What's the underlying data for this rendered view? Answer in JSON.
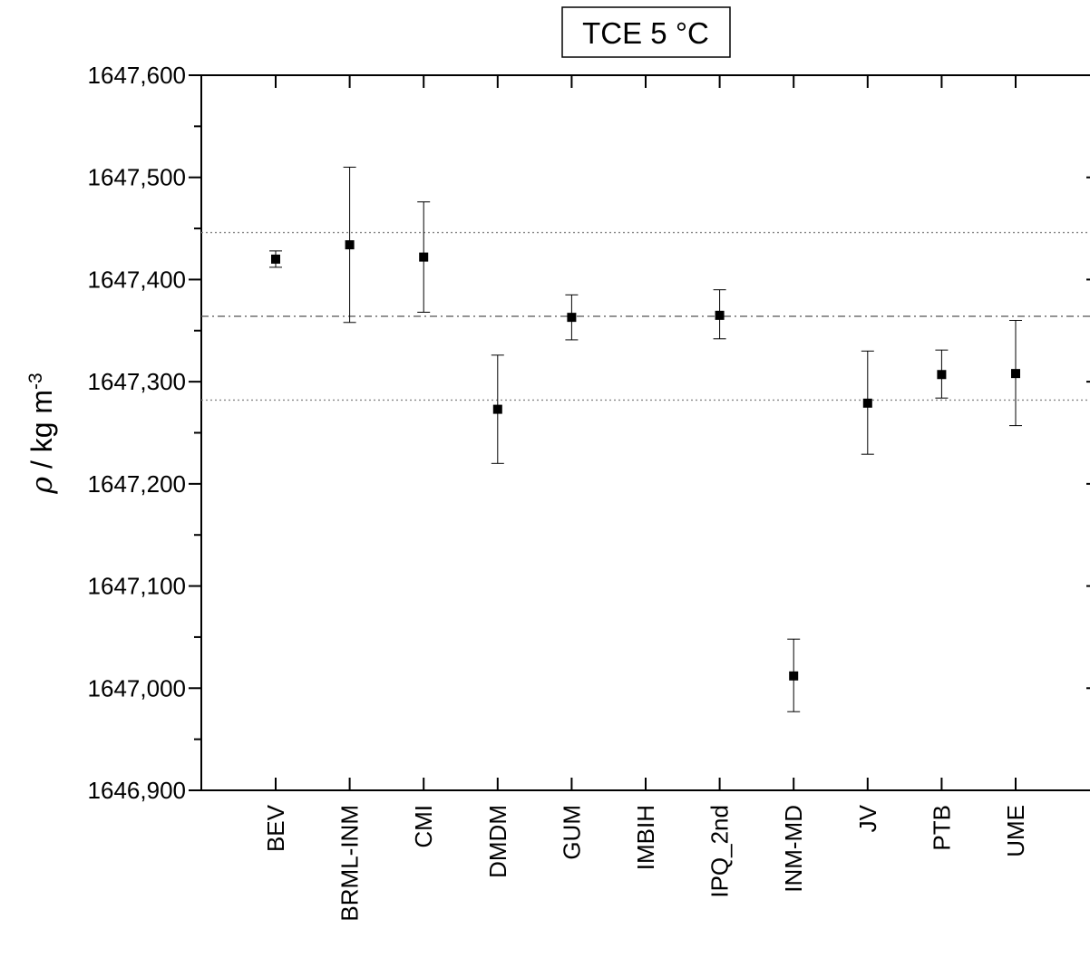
{
  "chart_data": {
    "type": "scatter",
    "title": "TCE 5 °C",
    "ylabel": {
      "symbol": "ρ",
      "text": " / kg m",
      "sup": "-3"
    },
    "xlabel": "",
    "ylim": [
      1646.9,
      1647.6
    ],
    "yticks": [
      1646.9,
      1647.0,
      1647.1,
      1647.2,
      1647.3,
      1647.4,
      1647.5,
      1647.6
    ],
    "ytick_labels": [
      "1646,900",
      "1647,000",
      "1647,100",
      "1647,200",
      "1647,300",
      "1647,400",
      "1647,500",
      "1647,600"
    ],
    "categories": [
      "BEV",
      "BRML-INM",
      "CMI",
      "DMDM",
      "GUM",
      "IMBIH",
      "IPQ_2nd",
      "INM-MD",
      "JV",
      "PTB",
      "UME"
    ],
    "points": [
      {
        "category": "BEV",
        "y": 1647.42,
        "err_low": 1647.412,
        "err_high": 1647.428
      },
      {
        "category": "BRML-INM",
        "y": 1647.434,
        "err_low": 1647.358,
        "err_high": 1647.51
      },
      {
        "category": "CMI",
        "y": 1647.422,
        "err_low": 1647.368,
        "err_high": 1647.476
      },
      {
        "category": "DMDM",
        "y": 1647.273,
        "err_low": 1647.22,
        "err_high": 1647.326
      },
      {
        "category": "GUM",
        "y": 1647.363,
        "err_low": 1647.341,
        "err_high": 1647.385
      },
      {
        "category": "IPQ_2nd",
        "y": 1647.365,
        "err_low": 1647.342,
        "err_high": 1647.39
      },
      {
        "category": "INM-MD",
        "y": 1647.012,
        "err_low": 1646.977,
        "err_high": 1647.048
      },
      {
        "category": "JV",
        "y": 1647.279,
        "err_low": 1647.229,
        "err_high": 1647.33
      },
      {
        "category": "PTB",
        "y": 1647.307,
        "err_low": 1647.284,
        "err_high": 1647.331
      },
      {
        "category": "UME",
        "y": 1647.308,
        "err_low": 1647.257,
        "err_high": 1647.36
      }
    ],
    "reference_lines": [
      {
        "y": 1647.364,
        "style": "dash-dot"
      },
      {
        "y": 1647.446,
        "style": "dotted"
      },
      {
        "y": 1647.282,
        "style": "dotted"
      }
    ],
    "grid": false,
    "legend": "none"
  }
}
